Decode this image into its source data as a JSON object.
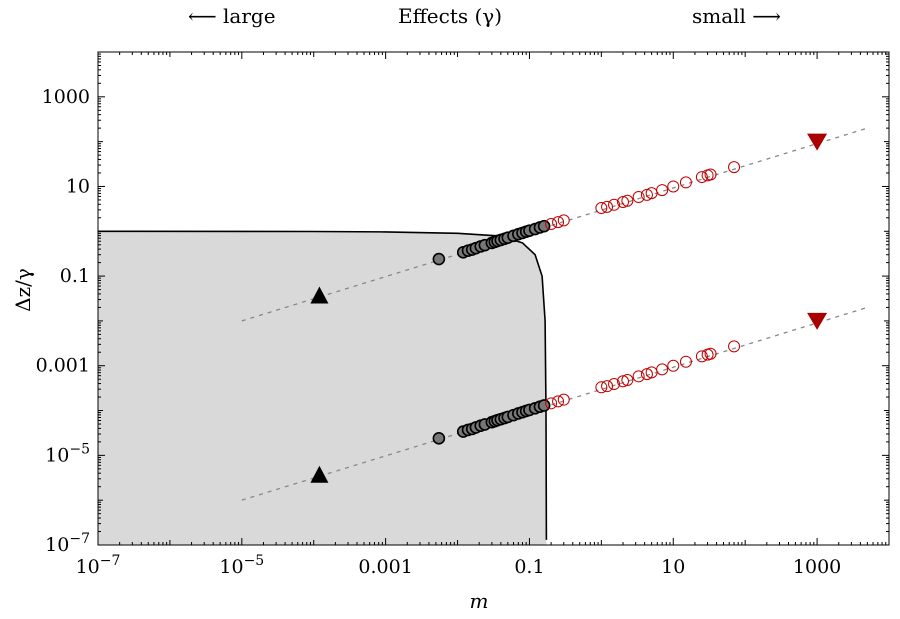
{
  "header": {
    "left": "⟵ large",
    "center": "Effects (γ)",
    "right": "small ⟶"
  },
  "chart_data": {
    "type": "scatter",
    "xlabel": "m",
    "ylabel": "Δz/γ",
    "x_log": true,
    "y_log": true,
    "xlim": [
      1e-07,
      10000
    ],
    "ylim": [
      1e-07,
      10000
    ],
    "x_ticks": [
      {
        "value": 1e-07,
        "label": "10",
        "sup": "−7"
      },
      {
        "value": 1e-05,
        "label": "10",
        "sup": "−5"
      },
      {
        "value": 0.001,
        "label": "0.001",
        "sup": ""
      },
      {
        "value": 0.1,
        "label": "0.1",
        "sup": ""
      },
      {
        "value": 10,
        "label": "10",
        "sup": ""
      },
      {
        "value": 1000,
        "label": "1000",
        "sup": ""
      }
    ],
    "y_ticks": [
      {
        "value": 1e-07,
        "label": "10",
        "sup": "−7"
      },
      {
        "value": 1e-05,
        "label": "10",
        "sup": "−5"
      },
      {
        "value": 0.001,
        "label": "0.001",
        "sup": ""
      },
      {
        "value": 0.1,
        "label": "0.1",
        "sup": ""
      },
      {
        "value": 10,
        "label": "10",
        "sup": ""
      },
      {
        "value": 1000,
        "label": "1000",
        "sup": ""
      }
    ],
    "shaded_region": {
      "fill": "#d9d9d9",
      "boundary": [
        [
          1e-07,
          1.0
        ],
        [
          0.0001,
          0.99
        ],
        [
          0.001,
          0.97
        ],
        [
          0.01,
          0.9
        ],
        [
          0.04,
          0.78
        ],
        [
          0.08,
          0.55
        ],
        [
          0.12,
          0.3
        ],
        [
          0.15,
          0.1
        ],
        [
          0.165,
          0.01
        ],
        [
          0.17,
          0.0001
        ],
        [
          0.172,
          1.3e-07
        ]
      ]
    },
    "reference_lines": [
      {
        "name": "",
        "x": [
          1e-05,
          5000
        ],
        "y": [
          0.01,
          200.0
        ],
        "style": "dotted",
        "color": "#888888"
      },
      {
        "name": "",
        "x": [
          1e-05,
          5000
        ],
        "y": [
          1e-06,
          0.02
        ],
        "style": "dotted",
        "color": "#888888"
      }
    ],
    "series": [
      {
        "name": "",
        "marker": "triangle-up",
        "color": "#000000",
        "points": [
          [
            0.00012,
            0.035
          ],
          [
            0.00012,
            3.5e-06
          ]
        ]
      },
      {
        "name": "",
        "marker": "circle-filled",
        "color": "#777777",
        "points": [
          [
            0.0055,
            0.24
          ],
          [
            0.012,
            0.34
          ],
          [
            0.014,
            0.37
          ],
          [
            0.016,
            0.39
          ],
          [
            0.018,
            0.42
          ],
          [
            0.021,
            0.46
          ],
          [
            0.024,
            0.49
          ],
          [
            0.03,
            0.55
          ],
          [
            0.033,
            0.58
          ],
          [
            0.036,
            0.61
          ],
          [
            0.04,
            0.64
          ],
          [
            0.045,
            0.68
          ],
          [
            0.05,
            0.72
          ],
          [
            0.06,
            0.79
          ],
          [
            0.07,
            0.86
          ],
          [
            0.08,
            0.92
          ],
          [
            0.09,
            0.98
          ],
          [
            0.1,
            1.03
          ],
          [
            0.12,
            1.12
          ],
          [
            0.14,
            1.22
          ],
          [
            0.16,
            1.3
          ],
          [
            0.0055,
            2.4e-05
          ],
          [
            0.012,
            3.4e-05
          ],
          [
            0.014,
            3.7e-05
          ],
          [
            0.016,
            3.9e-05
          ],
          [
            0.018,
            4.2e-05
          ],
          [
            0.021,
            4.6e-05
          ],
          [
            0.024,
            4.9e-05
          ],
          [
            0.03,
            5.5e-05
          ],
          [
            0.033,
            5.8e-05
          ],
          [
            0.036,
            6.1e-05
          ],
          [
            0.04,
            6.4e-05
          ],
          [
            0.045,
            6.8e-05
          ],
          [
            0.05,
            7.2e-05
          ],
          [
            0.06,
            7.9e-05
          ],
          [
            0.07,
            8.6e-05
          ],
          [
            0.08,
            9.2e-05
          ],
          [
            0.09,
            9.8e-05
          ],
          [
            0.1,
            0.000103
          ],
          [
            0.12,
            0.000112
          ],
          [
            0.14,
            0.000122
          ],
          [
            0.16,
            0.00013
          ]
        ]
      },
      {
        "name": "",
        "marker": "circle-open",
        "color": "#c00000",
        "points": [
          [
            0.2,
            1.45
          ],
          [
            0.25,
            1.6
          ],
          [
            0.3,
            1.75
          ],
          [
            1.0,
            3.3
          ],
          [
            1.2,
            3.5
          ],
          [
            1.5,
            3.9
          ],
          [
            2.0,
            4.5
          ],
          [
            2.3,
            4.8
          ],
          [
            3.3,
            5.8
          ],
          [
            4.3,
            6.5
          ],
          [
            5.0,
            7.1
          ],
          [
            7.0,
            8.3
          ],
          [
            10.0,
            10.0
          ],
          [
            15.0,
            12.3
          ],
          [
            25.0,
            16.2
          ],
          [
            30.0,
            17.7
          ],
          [
            33.0,
            18.5
          ],
          [
            70.0,
            27.0
          ],
          [
            0.2,
            0.000145
          ],
          [
            0.25,
            0.00016
          ],
          [
            0.3,
            0.000175
          ],
          [
            1.0,
            0.00033
          ],
          [
            1.2,
            0.00035
          ],
          [
            1.5,
            0.00039
          ],
          [
            2.0,
            0.00045
          ],
          [
            2.3,
            0.00048
          ],
          [
            3.3,
            0.00058
          ],
          [
            4.3,
            0.00065
          ],
          [
            5.0,
            0.00071
          ],
          [
            7.0,
            0.00083
          ],
          [
            10.0,
            0.001
          ],
          [
            15.0,
            0.00123
          ],
          [
            25.0,
            0.00162
          ],
          [
            30.0,
            0.00177
          ],
          [
            33.0,
            0.00185
          ],
          [
            70.0,
            0.0027
          ]
        ]
      },
      {
        "name": "",
        "marker": "triangle-down",
        "color": "#aa0000",
        "points": [
          [
            1000,
            100
          ],
          [
            1000,
            0.01
          ]
        ]
      }
    ],
    "grid": false,
    "legend": "none"
  }
}
